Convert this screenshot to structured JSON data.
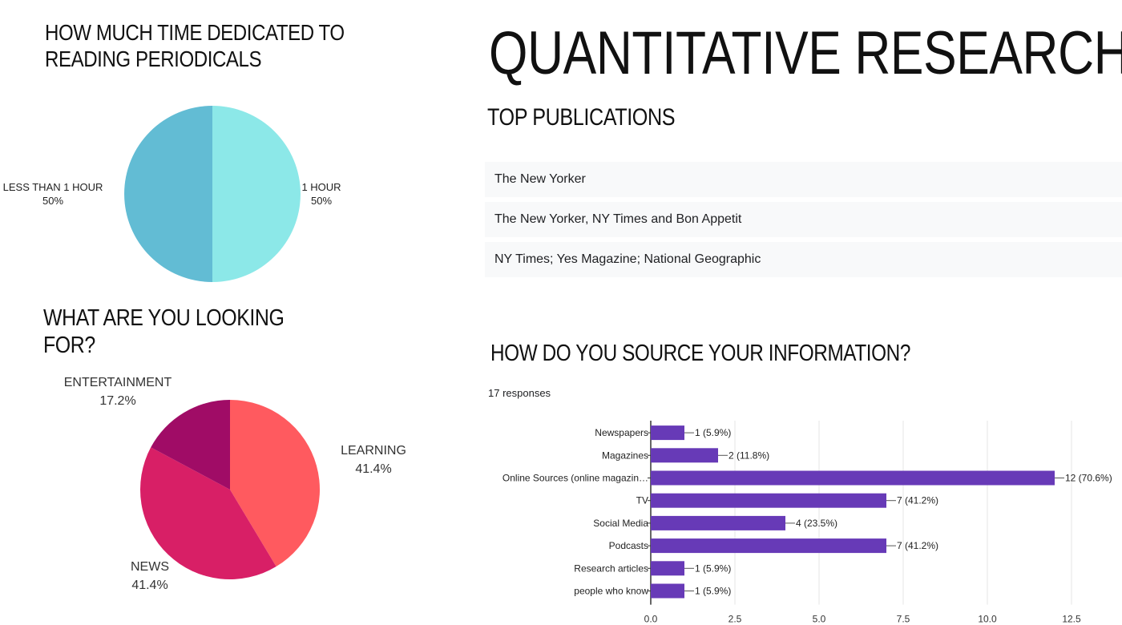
{
  "main_title": "QUANTITATIVE RESEARCH",
  "colors": {
    "pie1_light": "#8ce8e8",
    "pie1_dark": "#62bcd4",
    "learning": "#ff5a5f",
    "news": "#d81f66",
    "entertainment": "#a00c66",
    "bar": "#673ab7",
    "row_bg": "#f8f9fa"
  },
  "top_publications": {
    "title": "TOP PUBLICATIONS",
    "items": [
      "The New Yorker",
      "The New Yorker, NY Times and Bon Appetit",
      "NY Times; Yes Magazine; National Geographic"
    ]
  },
  "chart_data": [
    {
      "type": "pie",
      "title": "HOW MUCH TIME DEDICATED TO READING PERIODICALS",
      "slices": [
        {
          "label": "1 HOUR",
          "percent_label": "50%",
          "value": 50,
          "color": "#8ce8e8"
        },
        {
          "label": "LESS THAN 1 HOUR",
          "percent_label": "50%",
          "value": 50,
          "color": "#62bcd4"
        }
      ]
    },
    {
      "type": "pie",
      "title": "WHAT ARE YOU LOOKING FOR?",
      "slices": [
        {
          "label": "LEARNING",
          "percent_label": "41.4%",
          "value": 41.4,
          "color": "#ff5a5f"
        },
        {
          "label": "NEWS",
          "percent_label": "41.4%",
          "value": 41.4,
          "color": "#d81f66"
        },
        {
          "label": "ENTERTAINMENT",
          "percent_label": "17.2%",
          "value": 17.2,
          "color": "#a00c66"
        }
      ]
    },
    {
      "type": "bar",
      "orientation": "horizontal",
      "title": "HOW DO YOU SOURCE YOUR INFORMATION?",
      "subtitle": "17 responses",
      "categories": [
        "Newspapers",
        "Magazines",
        "Online Sources (online magazin…",
        "TV",
        "Social Media",
        "Podcasts",
        "Research articles",
        "people who know"
      ],
      "values": [
        1,
        2,
        12,
        7,
        4,
        7,
        1,
        1
      ],
      "value_labels": [
        "1 (5.9%)",
        "2 (11.8%)",
        "12 (70.6%)",
        "7 (41.2%)",
        "4 (23.5%)",
        "7 (41.2%)",
        "1 (5.9%)",
        "1 (5.9%)"
      ],
      "xlim": [
        0,
        12.5
      ],
      "xticks": [
        "0.0",
        "2.5",
        "5.0",
        "7.5",
        "10.0",
        "12.5"
      ],
      "grid": true
    }
  ]
}
